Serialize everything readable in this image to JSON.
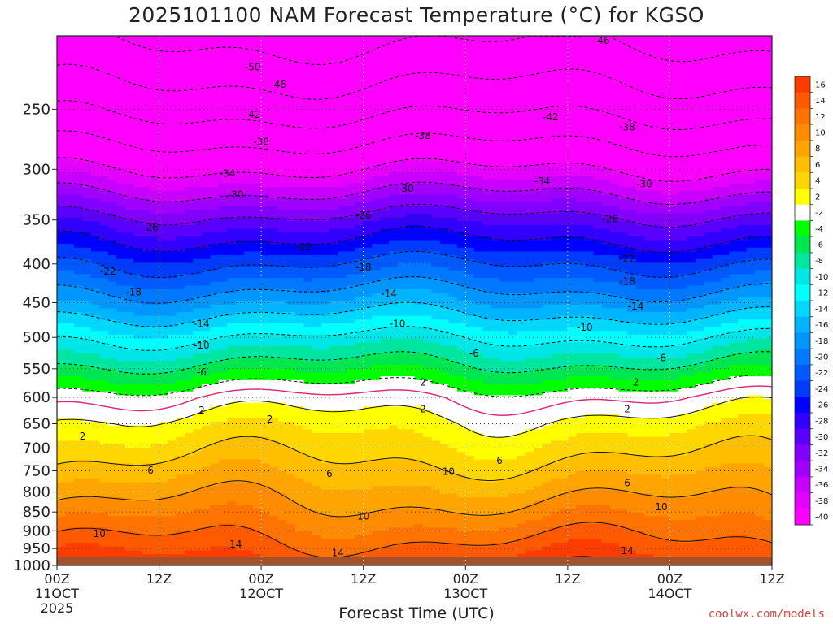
{
  "chart_data": {
    "type": "heatmap",
    "title": "2025101100 NAM Forecast Temperature (°C) for KGSO",
    "xlabel": "Forecast Time (UTC)",
    "credit": "coolwx.com/models",
    "y_axis": {
      "ticks": [
        250,
        300,
        350,
        400,
        450,
        500,
        550,
        600,
        650,
        700,
        750,
        800,
        850,
        900,
        950,
        1000
      ],
      "range": [
        200,
        1000
      ],
      "scale": "log-pressure"
    },
    "x_axis": {
      "range_hours": [
        0,
        84
      ],
      "ticks": [
        {
          "hour": 0,
          "line1": "00Z",
          "line2": "11OCT",
          "line3": "2025"
        },
        {
          "hour": 12,
          "line1": "12Z",
          "line2": "",
          "line3": ""
        },
        {
          "hour": 24,
          "line1": "00Z",
          "line2": "12OCT",
          "line3": ""
        },
        {
          "hour": 36,
          "line1": "12Z",
          "line2": "",
          "line3": ""
        },
        {
          "hour": 48,
          "line1": "00Z",
          "line2": "13OCT",
          "line3": ""
        },
        {
          "hour": 60,
          "line1": "12Z",
          "line2": "",
          "line3": ""
        },
        {
          "hour": 72,
          "line1": "00Z",
          "line2": "14OCT",
          "line3": ""
        },
        {
          "hour": 84,
          "line1": "12Z",
          "line2": "",
          "line3": ""
        }
      ]
    },
    "colorbar": {
      "labels": [
        16,
        14,
        12,
        10,
        8,
        6,
        4,
        2,
        -2,
        -4,
        -6,
        -8,
        -10,
        -12,
        -14,
        -16,
        -18,
        -20,
        -22,
        -24,
        -26,
        -28,
        -30,
        -32,
        -34,
        -36,
        -38,
        -40
      ],
      "colors": [
        "#ff3c00",
        "#ff5a00",
        "#ff7300",
        "#ff8c00",
        "#ffa500",
        "#ffbe00",
        "#ffd700",
        "#ffff00",
        "#ffffff",
        "#00ff00",
        "#00e650",
        "#00e6a0",
        "#00e6e6",
        "#00ffff",
        "#00d7ff",
        "#00b4ff",
        "#0096ff",
        "#0078ff",
        "#005aff",
        "#003cff",
        "#0000ff",
        "#3200ff",
        "#5a00ff",
        "#8200ff",
        "#a000ff",
        "#c800ff",
        "#e600ff",
        "#ff00ff"
      ]
    },
    "profile_p": [
      200,
      250,
      300,
      350,
      400,
      450,
      500,
      550,
      600,
      650,
      700,
      750,
      800,
      850,
      900,
      950,
      1000
    ],
    "profile_t": [
      -55,
      -47,
      -38,
      -29,
      -22,
      -16,
      -10,
      -5,
      0,
      3,
      5,
      7,
      9,
      11,
      13,
      15,
      17
    ],
    "surface_color": "#a0522d",
    "surface_top_hpa": 975,
    "freezing_line_color": "#e0207a",
    "contour_labels": [
      {
        "t": "-46",
        "h": 64,
        "p": 203
      },
      {
        "t": "-50",
        "h": 23,
        "p": 220
      },
      {
        "t": "-46",
        "h": 26,
        "p": 232
      },
      {
        "t": "-42",
        "h": 23,
        "p": 254
      },
      {
        "t": "-42",
        "h": 58,
        "p": 256
      },
      {
        "t": "-38",
        "h": 24,
        "p": 276
      },
      {
        "t": "-38",
        "h": 43,
        "p": 271
      },
      {
        "t": "-38",
        "h": 67,
        "p": 264
      },
      {
        "t": "-34",
        "h": 20,
        "p": 304
      },
      {
        "t": "-34",
        "h": 57,
        "p": 311
      },
      {
        "t": "-30",
        "h": 21,
        "p": 324
      },
      {
        "t": "-30",
        "h": 41,
        "p": 318
      },
      {
        "t": "-30",
        "h": 69,
        "p": 314
      },
      {
        "t": "-26",
        "h": 11,
        "p": 358
      },
      {
        "t": "-26",
        "h": 36,
        "p": 345
      },
      {
        "t": "-26",
        "h": 65,
        "p": 349
      },
      {
        "t": "-22",
        "h": 6,
        "p": 409
      },
      {
        "t": "-22",
        "h": 29,
        "p": 380
      },
      {
        "t": "-22",
        "h": 67,
        "p": 394
      },
      {
        "t": "-18",
        "h": 9,
        "p": 436
      },
      {
        "t": "-18",
        "h": 36,
        "p": 404
      },
      {
        "t": "-18",
        "h": 67,
        "p": 422
      },
      {
        "t": "-14",
        "h": 17,
        "p": 480
      },
      {
        "t": "-14",
        "h": 39,
        "p": 438
      },
      {
        "t": "-14",
        "h": 68,
        "p": 455
      },
      {
        "t": "-10",
        "h": 17,
        "p": 512
      },
      {
        "t": "-10",
        "h": 40,
        "p": 480
      },
      {
        "t": "-10",
        "h": 62,
        "p": 485
      },
      {
        "t": "-6",
        "h": 17,
        "p": 556
      },
      {
        "t": "-6",
        "h": 49,
        "p": 525
      },
      {
        "t": "-6",
        "h": 71,
        "p": 532
      },
      {
        "t": "2",
        "h": 43,
        "p": 573
      },
      {
        "t": "2",
        "h": 68,
        "p": 573
      },
      {
        "t": "2",
        "h": 17,
        "p": 624
      },
      {
        "t": "2",
        "h": 25,
        "p": 641
      },
      {
        "t": "2",
        "h": 43,
        "p": 622
      },
      {
        "t": "2",
        "h": 67,
        "p": 622
      },
      {
        "t": "2",
        "h": 3,
        "p": 675
      },
      {
        "t": "6",
        "h": 11,
        "p": 749
      },
      {
        "t": "6",
        "h": 32,
        "p": 757
      },
      {
        "t": "6",
        "h": 52,
        "p": 727
      },
      {
        "t": "6",
        "h": 67,
        "p": 778
      },
      {
        "t": "10",
        "h": 46,
        "p": 752
      },
      {
        "t": "10",
        "h": 5,
        "p": 908
      },
      {
        "t": "10",
        "h": 36,
        "p": 861
      },
      {
        "t": "10",
        "h": 71,
        "p": 837
      },
      {
        "t": "14",
        "h": 21,
        "p": 938
      },
      {
        "t": "14",
        "h": 33,
        "p": 963
      },
      {
        "t": "14",
        "h": 67,
        "p": 957
      }
    ]
  }
}
